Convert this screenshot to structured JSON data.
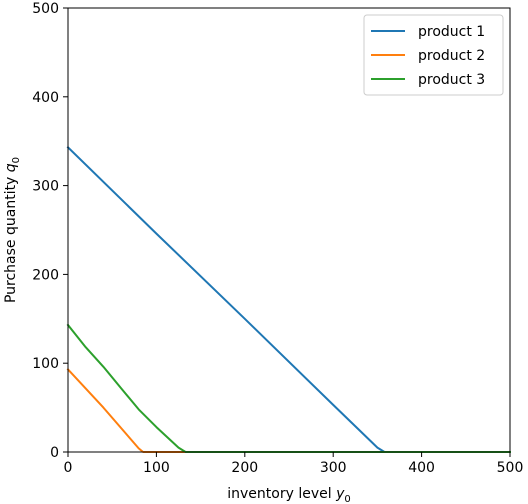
{
  "chart_data": {
    "type": "line",
    "title": "",
    "xlabel": "inventory level",
    "xlabel_var": "y",
    "xlabel_sub": "0",
    "ylabel": "Purchase quantity",
    "ylabel_var": "q",
    "ylabel_sub": "0",
    "xlim": [
      0,
      500
    ],
    "ylim": [
      0,
      500
    ],
    "xticks": [
      0,
      100,
      200,
      300,
      400,
      500
    ],
    "yticks": [
      0,
      100,
      200,
      300,
      400,
      500
    ],
    "grid": false,
    "legend_position": "top-right",
    "series": [
      {
        "name": "product 1",
        "color": "#1f77b4",
        "x": [
          0,
          100,
          200,
          300,
          350,
          358,
          500
        ],
        "y": [
          343,
          246,
          150,
          53,
          5,
          0,
          0
        ]
      },
      {
        "name": "product 2",
        "color": "#ff7f0e",
        "x": [
          0,
          40,
          80,
          85,
          500
        ],
        "y": [
          93,
          50,
          4,
          0,
          0
        ]
      },
      {
        "name": "product 3",
        "color": "#2ca02c",
        "x": [
          0,
          20,
          40,
          60,
          80,
          100,
          125,
          133,
          500
        ],
        "y": [
          143,
          118,
          96,
          72,
          48,
          28,
          5,
          0,
          0
        ]
      }
    ]
  }
}
